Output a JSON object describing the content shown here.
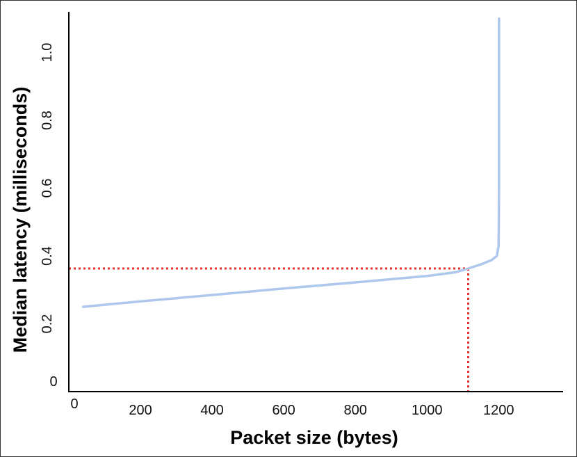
{
  "chart_data": {
    "type": "line",
    "title": "",
    "xlabel": "Packet size (bytes)",
    "ylabel": "Median latency (milliseconds)",
    "xlim": [
      0,
      1380
    ],
    "ylim": [
      0,
      1.12
    ],
    "x_ticks": [
      {
        "value": 0,
        "label": "0"
      },
      {
        "value": 200,
        "label": "200"
      },
      {
        "value": 400,
        "label": "400"
      },
      {
        "value": 600,
        "label": "600"
      },
      {
        "value": 800,
        "label": "800"
      },
      {
        "value": 1000,
        "label": "1000"
      },
      {
        "value": 1200,
        "label": "1200"
      }
    ],
    "y_ticks": [
      {
        "value": 0,
        "label": "0"
      },
      {
        "value": 0.2,
        "label": "0.2"
      },
      {
        "value": 0.4,
        "label": "0.4"
      },
      {
        "value": 0.6,
        "label": "0.6"
      },
      {
        "value": 0.8,
        "label": "0.8"
      },
      {
        "value": 1.0,
        "label": "1.0"
      }
    ],
    "grid": false,
    "series": [
      {
        "color": "#aec7ec",
        "points": [
          [
            40,
            0.25
          ],
          [
            200,
            0.266
          ],
          [
            400,
            0.285
          ],
          [
            600,
            0.304
          ],
          [
            800,
            0.322
          ],
          [
            1000,
            0.341
          ],
          [
            1080,
            0.352
          ],
          [
            1115,
            0.363
          ],
          [
            1150,
            0.375
          ],
          [
            1180,
            0.388
          ],
          [
            1195,
            0.4
          ],
          [
            1200,
            0.43
          ],
          [
            1201,
            0.6
          ],
          [
            1201,
            0.85
          ],
          [
            1201,
            1.1
          ]
        ]
      }
    ],
    "reference_lines": {
      "color": "#e8302c",
      "point": [
        1115,
        0.363
      ]
    }
  }
}
